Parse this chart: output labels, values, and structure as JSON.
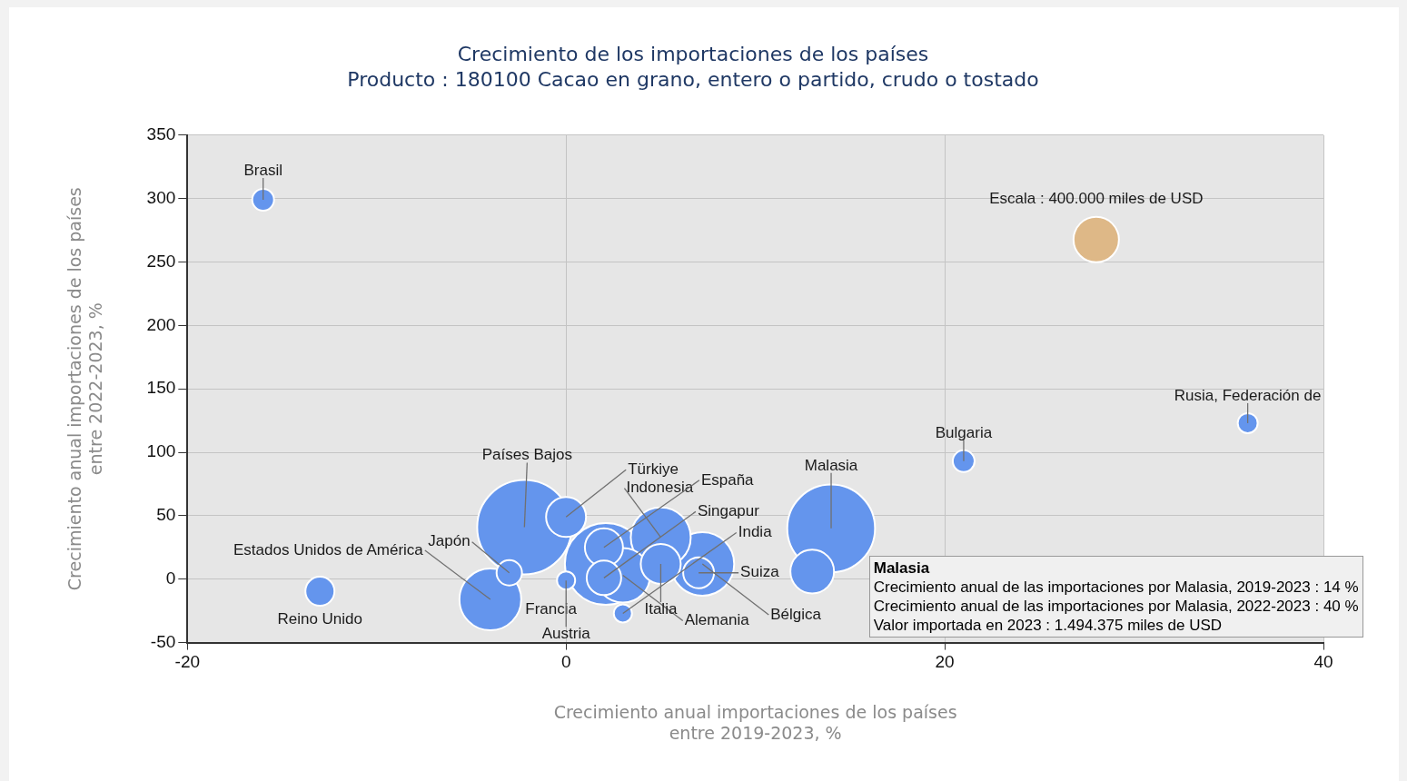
{
  "chart_data": {
    "type": "bubble",
    "title": "Crecimiento de los importaciones de los países",
    "subtitle": "Producto : 180100 Cacao en grano, entero o partido, crudo o tostado",
    "xlabel": "Crecimiento anual importaciones de los países\nentre 2019-2023, %",
    "ylabel": "Crecimiento anual importaciones de los países\nentre 2022-2023, %",
    "xlim": [
      -20,
      40
    ],
    "xticks": [
      -20,
      0,
      20,
      40
    ],
    "ylim": [
      -50,
      350
    ],
    "yticks": [
      -50,
      0,
      50,
      100,
      150,
      200,
      250,
      300,
      350
    ],
    "grid": true,
    "legend": false,
    "size_legend": [
      {
        "value": 400000,
        "label": "Escala : 400.000 miles de USD"
      }
    ],
    "series": [
      {
        "name": "Brasil",
        "color": "#6495ed",
        "x": [
          -16
        ],
        "values": [
          299
        ],
        "sizes": [
          92000
        ]
      },
      {
        "name": "Rusia, Federación de",
        "color": "#6495ed",
        "x": [
          36
        ],
        "values": [
          123
        ],
        "sizes": [
          77000
        ]
      },
      {
        "name": "Bulgaria",
        "color": "#6495ed",
        "x": [
          21
        ],
        "values": [
          93
        ],
        "sizes": [
          92000
        ]
      },
      {
        "name": "Malasia",
        "color": "#6495ed",
        "x": [
          14
        ],
        "values": [
          40
        ],
        "sizes": [
          1494375
        ]
      },
      {
        "color": "#6495ed",
        "x": [
          13
        ],
        "values": [
          6
        ],
        "sizes": [
          370000
        ]
      },
      {
        "name": "Países Bajos",
        "color": "#6495ed",
        "x": [
          -2.2
        ],
        "values": [
          41
        ],
        "sizes": [
          1730000
        ]
      },
      {
        "name": "Türkiye",
        "color": "#6495ed",
        "x": [
          0
        ],
        "values": [
          49
        ],
        "sizes": [
          310000
        ]
      },
      {
        "name": "Francia",
        "color": "#6495ed",
        "x": [
          2.1
        ],
        "values": [
          12
        ],
        "sizes": [
          1300000
        ]
      },
      {
        "name": "Alemania",
        "color": "#6495ed",
        "x": [
          3
        ],
        "values": [
          3
        ],
        "sizes": [
          576000
        ]
      },
      {
        "name": "Indonesia",
        "color": "#6495ed",
        "x": [
          5
        ],
        "values": [
          33
        ],
        "sizes": [
          697000
        ]
      },
      {
        "name": "Bélgica",
        "color": "#6495ed",
        "x": [
          7.2
        ],
        "values": [
          12
        ],
        "sizes": [
          784000
        ]
      },
      {
        "name": "España",
        "color": "#6495ed",
        "x": [
          2
        ],
        "values": [
          25
        ],
        "sizes": [
          282000
        ]
      },
      {
        "name": "Italia",
        "color": "#6495ed",
        "x": [
          5
        ],
        "values": [
          12
        ],
        "sizes": [
          310000
        ]
      },
      {
        "name": "Singapur",
        "color": "#6495ed",
        "x": [
          2
        ],
        "values": [
          1
        ],
        "sizes": [
          231000
        ]
      },
      {
        "name": "Suiza",
        "color": "#6495ed",
        "x": [
          7
        ],
        "values": [
          5
        ],
        "sizes": [
          185000
        ]
      },
      {
        "name": "India",
        "color": "#6495ed",
        "x": [
          3
        ],
        "values": [
          -27
        ],
        "sizes": [
          64000
        ]
      },
      {
        "name": "Austria",
        "color": "#6495ed",
        "x": [
          0
        ],
        "values": [
          -1
        ],
        "sizes": [
          64000
        ]
      },
      {
        "name": "Japón",
        "color": "#6495ed",
        "x": [
          -3
        ],
        "values": [
          5
        ],
        "sizes": [
          125000
        ]
      },
      {
        "name": "Estados Unidos de América",
        "color": "#6495ed",
        "x": [
          -4
        ],
        "values": [
          -16
        ],
        "sizes": [
          740000
        ]
      },
      {
        "name": "Reino Unido",
        "color": "#6495ed",
        "x": [
          -13
        ],
        "values": [
          -9.5
        ],
        "sizes": [
          164000
        ]
      }
    ],
    "annotations": [
      "Malasia\nCrecimiento anual de las importaciones por Malasia, 2019-2023 : 14 %\nCrecimiento anual de las importaciones por Malasia, 2022-2023 : 40 %\nValor importada en 2023 : 1.494.375 miles de USD"
    ]
  }
}
